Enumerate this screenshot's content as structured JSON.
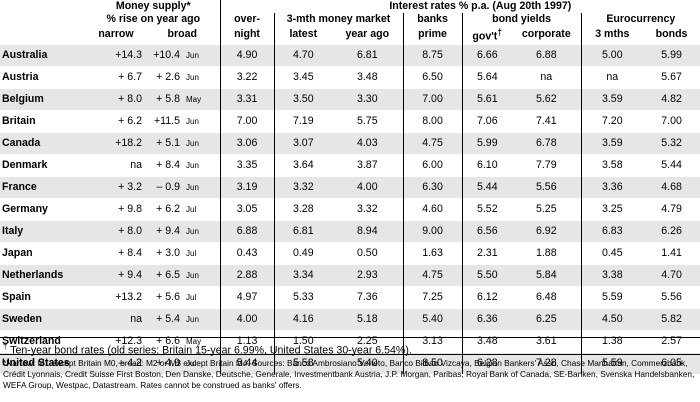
{
  "headers": {
    "money_supply": "Money supply*",
    "rise": "% rise on year ago",
    "narrow": "narrow",
    "broad": "broad",
    "interest_rates": "Interest rates % p.a. (Aug 20th 1997)",
    "overnight_top": "over-",
    "overnight_bottom": "night",
    "mm3": "3-mth money market",
    "latest": "latest",
    "year_ago": "year ago",
    "banks": "banks",
    "prime": "prime",
    "bond_yields": "bond yields",
    "govt": "gov't",
    "govt_mark": "†",
    "corporate": "corporate",
    "eurocurrency": "Eurocurrency",
    "mths3": "3 mths",
    "bonds": "bonds"
  },
  "rows": [
    {
      "country": "Australia",
      "narrow": "+14.3",
      "broad": "+10.4",
      "month": "Jun",
      "overnight": "4.90",
      "latest": "4.70",
      "year_ago": "6.81",
      "prime": "8.75",
      "govt": "6.66",
      "corporate": "6.88",
      "euro3": "5.00",
      "eurobonds": "5.99"
    },
    {
      "country": "Austria",
      "narrow": "+ 6.7",
      "broad": "+ 2.6",
      "month": "Jun",
      "overnight": "3.22",
      "latest": "3.45",
      "year_ago": "3.48",
      "prime": "6.50",
      "govt": "5.64",
      "corporate": "na",
      "euro3": "na",
      "eurobonds": "5.67"
    },
    {
      "country": "Belgium",
      "narrow": "+ 8.0",
      "broad": "+ 5.8",
      "month": "May",
      "overnight": "3.31",
      "latest": "3.50",
      "year_ago": "3.30",
      "prime": "7.00",
      "govt": "5.61",
      "corporate": "5.62",
      "euro3": "3.59",
      "eurobonds": "4.82"
    },
    {
      "country": "Britain",
      "narrow": "+ 6.2",
      "broad": "+11.5",
      "month": "Jun",
      "overnight": "7.00",
      "latest": "7.19",
      "year_ago": "5.75",
      "prime": "8.00",
      "govt": "7.06",
      "corporate": "7.41",
      "euro3": "7.20",
      "eurobonds": "7.00"
    },
    {
      "country": "Canada",
      "narrow": "+18.2",
      "broad": "+ 5.1",
      "month": "Jun",
      "overnight": "3.06",
      "latest": "3.07",
      "year_ago": "4.03",
      "prime": "4.75",
      "govt": "5.99",
      "corporate": "6.78",
      "euro3": "3.59",
      "eurobonds": "5.32"
    },
    {
      "country": "Denmark",
      "narrow": "na",
      "broad": "+ 8.4",
      "month": "Jun",
      "overnight": "3.35",
      "latest": "3.64",
      "year_ago": "3.87",
      "prime": "6.00",
      "govt": "6.10",
      "corporate": "7.79",
      "euro3": "3.58",
      "eurobonds": "5.44"
    },
    {
      "country": "France",
      "narrow": "+ 3.2",
      "broad": "– 0.9",
      "month": "Jun",
      "overnight": "3.19",
      "latest": "3.32",
      "year_ago": "4.00",
      "prime": "6.30",
      "govt": "5.44",
      "corporate": "5.56",
      "euro3": "3.36",
      "eurobonds": "4.68"
    },
    {
      "country": "Germany",
      "narrow": "+ 9.8",
      "broad": "+ 6.2",
      "month": "Jul",
      "overnight": "3.05",
      "latest": "3.28",
      "year_ago": "3.32",
      "prime": "4.60",
      "govt": "5.52",
      "corporate": "5.25",
      "euro3": "3.25",
      "eurobonds": "4.79"
    },
    {
      "country": "Italy",
      "narrow": "+ 8.0",
      "broad": "+ 9.4",
      "month": "Jun",
      "overnight": "6.88",
      "latest": "6.81",
      "year_ago": "8.94",
      "prime": "9.00",
      "govt": "6.56",
      "corporate": "6.92",
      "euro3": "6.83",
      "eurobonds": "6.26"
    },
    {
      "country": "Japan",
      "narrow": "+ 8.4",
      "broad": "+ 3.0",
      "month": "Jul",
      "overnight": "0.43",
      "latest": "0.49",
      "year_ago": "0.50",
      "prime": "1.63",
      "govt": "2.31",
      "corporate": "1.88",
      "euro3": "0.45",
      "eurobonds": "1.41"
    },
    {
      "country": "Netherlands",
      "narrow": "+ 9.4",
      "broad": "+ 6.5",
      "month": "Jun",
      "overnight": "2.88",
      "latest": "3.34",
      "year_ago": "2.93",
      "prime": "4.75",
      "govt": "5.50",
      "corporate": "5.84",
      "euro3": "3.38",
      "eurobonds": "4.70"
    },
    {
      "country": "Spain",
      "narrow": "+13.2",
      "broad": "+ 5.6",
      "month": "Jul",
      "overnight": "4.97",
      "latest": "5.33",
      "year_ago": "7.36",
      "prime": "7.25",
      "govt": "6.12",
      "corporate": "6.48",
      "euro3": "5.59",
      "eurobonds": "5.56"
    },
    {
      "country": "Sweden",
      "narrow": "na",
      "broad": "+ 5.4",
      "month": "Jun",
      "overnight": "4.00",
      "latest": "4.16",
      "year_ago": "5.18",
      "prime": "5.40",
      "govt": "6.36",
      "corporate": "6.25",
      "euro3": "4.50",
      "eurobonds": "5.82"
    },
    {
      "country": "Switzerland",
      "narrow": "+12.3",
      "broad": "+ 6.6",
      "month": "May",
      "overnight": "1.13",
      "latest": "1.50",
      "year_ago": "2.25",
      "prime": "3.13",
      "govt": "3.48",
      "corporate": "3.61",
      "euro3": "1.38",
      "eurobonds": "2.57"
    },
    {
      "country": "United States",
      "narrow": "– 4.2",
      "broad": "+ 4.9",
      "month": "Jul",
      "overnight": "5.44",
      "latest": "5.58",
      "year_ago": "5.40",
      "prime": "8.50",
      "govt": "6.28",
      "corporate": "7.28",
      "euro3": "5.59",
      "eurobonds": "6.05"
    }
  ],
  "footnote_mark": "†",
  "footnote": "Ten-year bond rates (old series: Britain 15-year 6.99%, United States 30-year 6.54%).",
  "notes": "*Narrow: M1 except Britain M0, broad: M2 or M3 except Britain M4. Sources: Banco Ambrosiano Veneto, Banco Bilbao Vizcaya, Belgian Bankers' Assn, Chase Manhattan, Commerzbank, Crédit Lyonnais, Credit Suisse First Boston, Den Danske, Deutsche, Generale, Investmentbank Austria, J.P. Morgan, Paribas, Royal Bank of Canada, SE-Banken, Svenska Handelsbanken, WEFA Group, Westpac, Datastream. Rates cannot be construed as banks' offers."
}
